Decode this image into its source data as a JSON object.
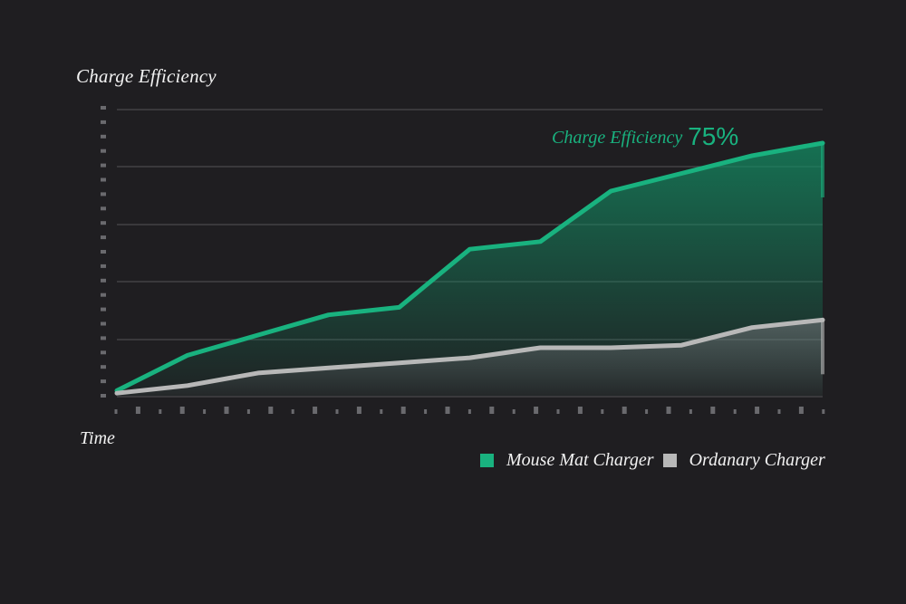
{
  "chart_data": {
    "type": "area",
    "ylabel": "Charge Efficiency",
    "xlabel": "Time",
    "grid": true,
    "legend_position": "bottom-right",
    "ylim": [
      0,
      100
    ],
    "x": [
      0,
      1,
      2,
      3,
      4,
      5,
      6,
      7,
      8,
      9,
      10
    ],
    "series": [
      {
        "name": "Mouse Mat Charger",
        "color": "#19b27f",
        "values": [
          2,
          16,
          24,
          32,
          35,
          58,
          61,
          81,
          88,
          95,
          100
        ]
      },
      {
        "name": "Ordanary Charger",
        "color": "#b8b8b8",
        "values": [
          1,
          4,
          9,
          11,
          13,
          15,
          19,
          19,
          20,
          27,
          30
        ]
      }
    ],
    "annotation": {
      "text": "Charge Efficiency",
      "value": "75%",
      "color": "#19b27f"
    }
  }
}
